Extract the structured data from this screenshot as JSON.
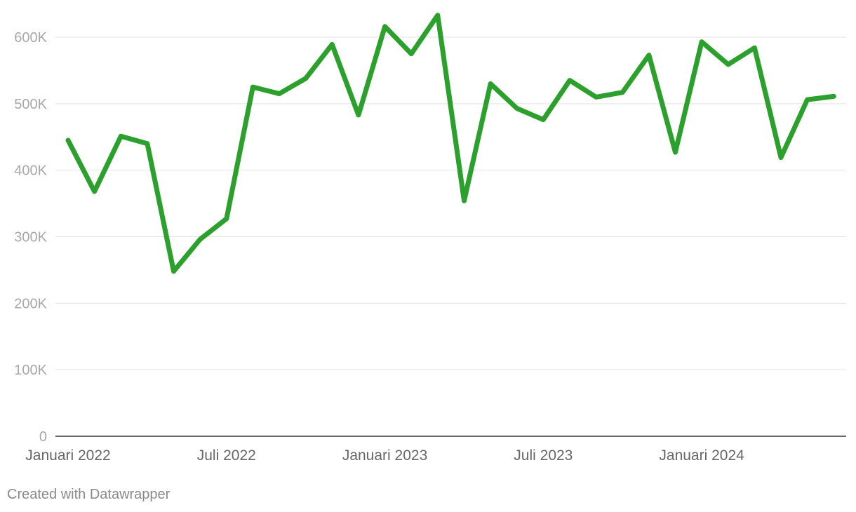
{
  "colors": {
    "series": "#2ca02c",
    "grid": "#e2e2e2",
    "baseline": "#333333",
    "ytick": "#a8a8a8",
    "xtick": "#666666",
    "footer": "#8a8a8a"
  },
  "footer": {
    "credit": "Created with Datawrapper"
  },
  "chart_data": {
    "type": "line",
    "title": "",
    "xlabel": "",
    "ylabel": "",
    "ylim": [
      0,
      600000
    ],
    "grid": true,
    "legend": "none",
    "y_ticks": [
      {
        "value": 0,
        "label": "0"
      },
      {
        "value": 100000,
        "label": "100K"
      },
      {
        "value": 200000,
        "label": "200K"
      },
      {
        "value": 300000,
        "label": "300K"
      },
      {
        "value": 400000,
        "label": "400K"
      },
      {
        "value": 500000,
        "label": "500K"
      },
      {
        "value": 600000,
        "label": "600K"
      }
    ],
    "x_ticks": [
      {
        "x": "2022-01",
        "label": "Januari 2022"
      },
      {
        "x": "2022-07",
        "label": "Juli 2022"
      },
      {
        "x": "2023-01",
        "label": "Januari 2023"
      },
      {
        "x": "2023-07",
        "label": "Juli 2023"
      },
      {
        "x": "2024-01",
        "label": "Januari 2024"
      }
    ],
    "x": [
      "2022-01",
      "2022-02",
      "2022-03",
      "2022-04",
      "2022-05",
      "2022-06",
      "2022-07",
      "2022-08",
      "2022-09",
      "2022-10",
      "2022-11",
      "2022-12",
      "2023-01",
      "2023-02",
      "2023-03",
      "2023-04",
      "2023-05",
      "2023-06",
      "2023-07",
      "2023-08",
      "2023-09",
      "2023-10",
      "2023-11",
      "2023-12",
      "2024-01",
      "2024-02",
      "2024-03",
      "2024-04",
      "2024-05",
      "2024-06"
    ],
    "series": [
      {
        "values": [
          445000,
          368000,
          451000,
          440000,
          248000,
          296000,
          327000,
          525000,
          515000,
          538000,
          589000,
          483000,
          616000,
          575000,
          633000,
          354000,
          530000,
          493000,
          476000,
          535000,
          510000,
          517000,
          573000,
          427000,
          593000,
          559000,
          584000,
          419000,
          506000,
          511000
        ]
      }
    ]
  }
}
